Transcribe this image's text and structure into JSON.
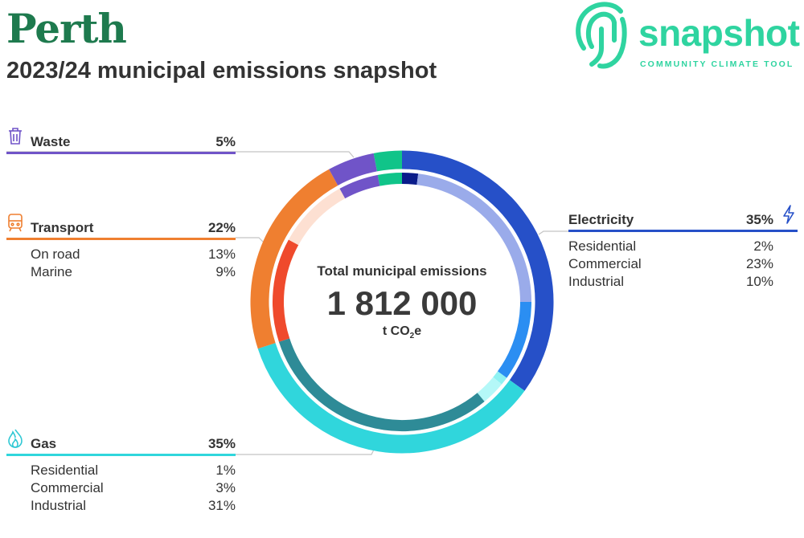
{
  "header": {
    "title": "Perth",
    "subtitle": "2023/24 municipal emissions snapshot"
  },
  "logo": {
    "word": "snapshot",
    "tagline": "COMMUNITY CLIMATE TOOL",
    "icon": "fingerprint-icon"
  },
  "center": {
    "title": "Total municipal emissions",
    "value": "1 812 000",
    "unit_prefix": "t CO",
    "unit_sub": "2",
    "unit_suffix": "e"
  },
  "colors": {
    "title": "#1e7a4e",
    "brand": "#2fd4a0",
    "electricity": "#2650c8",
    "gas": "#30d6dc",
    "transport": "#ef7f30",
    "waste": "#7054c8",
    "other": "#10c489"
  },
  "chart_data": {
    "type": "pie",
    "total": 1812000,
    "unit": "t CO2e",
    "series": [
      {
        "name": "Electricity",
        "value": 35,
        "icon": "lightning-icon",
        "color": "#2650c8",
        "sub": [
          {
            "name": "Residential",
            "value": 2,
            "color": "#0a1c8a"
          },
          {
            "name": "Commercial",
            "value": 23,
            "color": "#9aabea"
          },
          {
            "name": "Industrial",
            "value": 10,
            "color": "#2b8ef2"
          }
        ]
      },
      {
        "name": "Gas",
        "value": 35,
        "icon": "flame-icon",
        "color": "#30d6dc",
        "sub": [
          {
            "name": "Residential",
            "value": 1,
            "color": "#8ff2f2"
          },
          {
            "name": "Commercial",
            "value": 3,
            "color": "#b4f8f8"
          },
          {
            "name": "Industrial",
            "value": 31,
            "color": "#2e8b97"
          }
        ]
      },
      {
        "name": "Transport",
        "value": 22,
        "icon": "train-icon",
        "color": "#ef7f30",
        "sub": [
          {
            "name": "On road",
            "value": 13,
            "color": "#ef4a2c"
          },
          {
            "name": "Marine",
            "value": 9,
            "color": "#fde0d2"
          }
        ]
      },
      {
        "name": "Waste",
        "value": 5,
        "icon": "trash-icon",
        "color": "#7054c8",
        "sub": []
      },
      {
        "name": "",
        "value": 3,
        "color": "#10c489",
        "sub": []
      }
    ],
    "labels": {
      "electricity": {
        "name": "Electricity",
        "pct": "35%",
        "rows": [
          {
            "label": "Residential",
            "pct": "2%"
          },
          {
            "label": "Commercial",
            "pct": "23%"
          },
          {
            "label": "Industrial",
            "pct": "10%"
          }
        ]
      },
      "gas": {
        "name": "Gas",
        "pct": "35%",
        "rows": [
          {
            "label": "Residential",
            "pct": "1%"
          },
          {
            "label": "Commercial",
            "pct": "3%"
          },
          {
            "label": "Industrial",
            "pct": "31%"
          }
        ]
      },
      "transport": {
        "name": "Transport",
        "pct": "22%",
        "rows": [
          {
            "label": "On road",
            "pct": "13%"
          },
          {
            "label": "Marine",
            "pct": "9%"
          }
        ]
      },
      "waste": {
        "name": "Waste",
        "pct": "5%",
        "rows": []
      }
    }
  }
}
